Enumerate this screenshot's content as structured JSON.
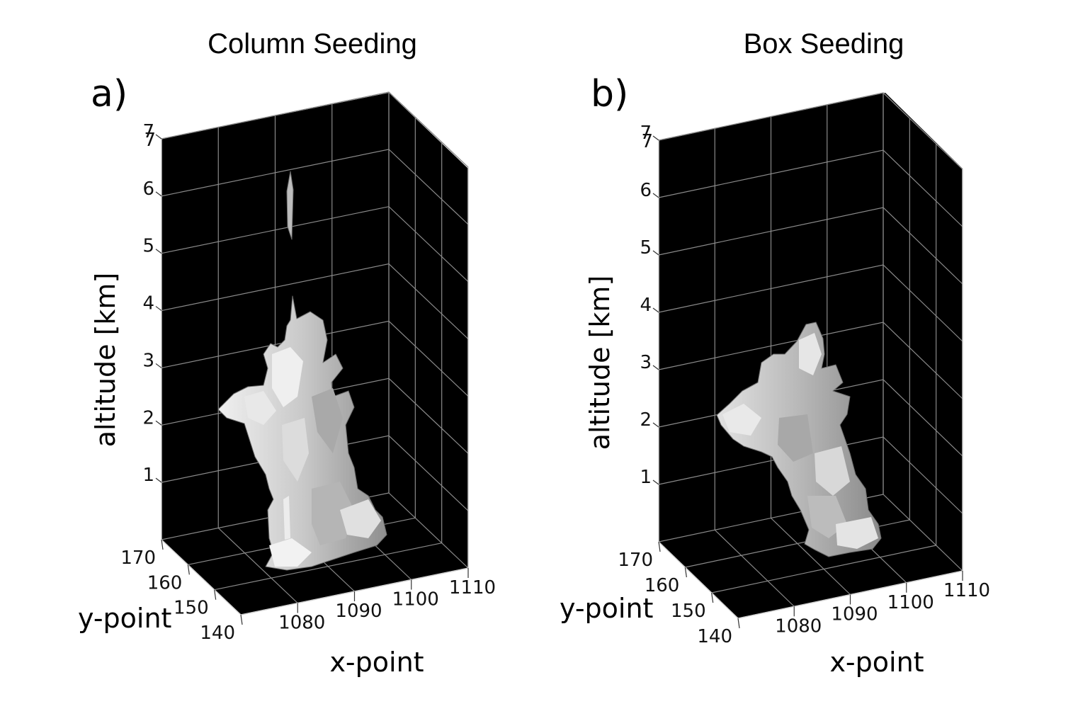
{
  "figure": {
    "panels": [
      {
        "title": "Column Seeding",
        "label": "a)"
      },
      {
        "title": "Box Seeding",
        "label": "b)"
      }
    ]
  },
  "chart_data": [
    {
      "type": "3d-isosurface",
      "title": "Column Seeding",
      "panel_label": "a)",
      "xlabel": "x-point",
      "ylabel": "y-point",
      "zlabel": "altitude [km]",
      "x_ticks": [
        1080,
        1090,
        1100,
        1110
      ],
      "y_ticks": [
        140,
        150,
        160,
        170
      ],
      "z_ticks": [
        1,
        2,
        3,
        4,
        5,
        6,
        7
      ],
      "xlim": [
        1070,
        1110
      ],
      "ylim": [
        140,
        170
      ],
      "zlim": [
        0,
        7
      ],
      "background": "#000000",
      "surface_color": "#d6d6d6",
      "grid": true,
      "surface_extent": {
        "altitude_km": [
          0.1,
          6.5
        ],
        "main_body_top_km": 4.2,
        "detached_fragment_km": [
          5.3,
          6.5
        ]
      }
    },
    {
      "type": "3d-isosurface",
      "title": "Box Seeding",
      "panel_label": "b)",
      "xlabel": "x-point",
      "ylabel": "y-point",
      "zlabel": "altitude [km]",
      "x_ticks": [
        1080,
        1090,
        1100,
        1110
      ],
      "y_ticks": [
        140,
        150,
        160,
        170
      ],
      "z_ticks": [
        1,
        2,
        3,
        4,
        5,
        6,
        7
      ],
      "xlim": [
        1070,
        1110
      ],
      "ylim": [
        140,
        170
      ],
      "zlim": [
        0,
        7
      ],
      "background": "#000000",
      "surface_color": "#c8c8c8",
      "grid": true,
      "surface_extent": {
        "altitude_km": [
          0.2,
          4.0
        ],
        "main_body_top_km": 4.0
      }
    }
  ]
}
